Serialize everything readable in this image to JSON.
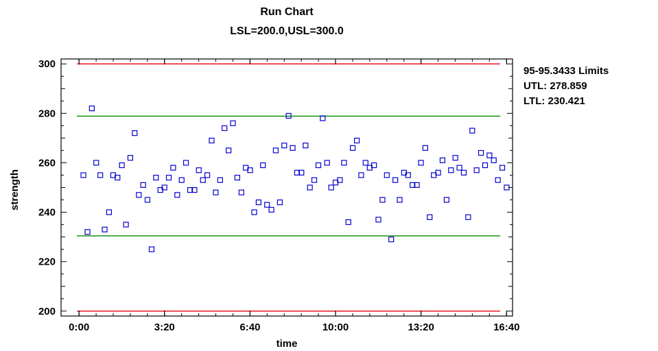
{
  "chart_data": {
    "type": "scatter",
    "title": "Run Chart",
    "subtitle": "LSL=200.0,USL=300.0",
    "xlabel": "time",
    "ylabel": "strength",
    "xlim": [
      -0.7,
      16.9
    ],
    "ylim": [
      198,
      302
    ],
    "x_ticks": [
      {
        "value": 0,
        "label": "0:00"
      },
      {
        "value": 3.333,
        "label": "3:20"
      },
      {
        "value": 6.667,
        "label": "6:40"
      },
      {
        "value": 10,
        "label": "10:00"
      },
      {
        "value": 13.333,
        "label": "13:20"
      },
      {
        "value": 16.667,
        "label": "16:40"
      }
    ],
    "y_ticks": [
      200,
      220,
      240,
      260,
      280,
      300
    ],
    "reference_lines": [
      {
        "name": "USL",
        "value": 300,
        "color": "#e8000b"
      },
      {
        "name": "UTL",
        "value": 278.859,
        "color": "#008a00"
      },
      {
        "name": "LTL",
        "value": 230.421,
        "color": "#008a00"
      },
      {
        "name": "LSL",
        "value": 200,
        "color": "#e8000b"
      }
    ],
    "legend": {
      "position": "right",
      "lines": [
        "95-95.3433 Limits",
        "UTL: 278.859",
        "LTL: 230.421"
      ]
    },
    "point_color": "#0000d0",
    "grid": false,
    "points": [
      [
        0.17,
        255
      ],
      [
        0.33,
        232
      ],
      [
        0.5,
        282
      ],
      [
        0.67,
        260
      ],
      [
        0.83,
        255
      ],
      [
        1.0,
        233
      ],
      [
        1.17,
        240
      ],
      [
        1.33,
        255
      ],
      [
        1.5,
        254
      ],
      [
        1.67,
        259
      ],
      [
        1.83,
        235
      ],
      [
        2.0,
        262
      ],
      [
        2.17,
        272
      ],
      [
        2.33,
        247
      ],
      [
        2.5,
        251
      ],
      [
        2.67,
        245
      ],
      [
        2.83,
        225
      ],
      [
        3.0,
        254
      ],
      [
        3.17,
        249
      ],
      [
        3.33,
        250
      ],
      [
        3.5,
        254
      ],
      [
        3.67,
        258
      ],
      [
        3.83,
        247
      ],
      [
        4.0,
        253
      ],
      [
        4.17,
        260
      ],
      [
        4.33,
        249
      ],
      [
        4.5,
        249
      ],
      [
        4.67,
        257
      ],
      [
        4.83,
        253
      ],
      [
        5.0,
        255
      ],
      [
        5.17,
        269
      ],
      [
        5.33,
        248
      ],
      [
        5.5,
        253
      ],
      [
        5.67,
        274
      ],
      [
        5.83,
        265
      ],
      [
        6.0,
        276
      ],
      [
        6.17,
        254
      ],
      [
        6.33,
        248
      ],
      [
        6.5,
        258
      ],
      [
        6.67,
        257
      ],
      [
        6.83,
        240
      ],
      [
        7.0,
        244
      ],
      [
        7.17,
        259
      ],
      [
        7.33,
        243
      ],
      [
        7.5,
        241
      ],
      [
        7.67,
        265
      ],
      [
        7.83,
        244
      ],
      [
        8.0,
        267
      ],
      [
        8.17,
        279
      ],
      [
        8.33,
        266
      ],
      [
        8.5,
        256
      ],
      [
        8.67,
        256
      ],
      [
        8.83,
        267
      ],
      [
        9.0,
        250
      ],
      [
        9.17,
        253
      ],
      [
        9.33,
        259
      ],
      [
        9.5,
        278
      ],
      [
        9.67,
        260
      ],
      [
        9.83,
        250
      ],
      [
        10.0,
        252
      ],
      [
        10.17,
        253
      ],
      [
        10.33,
        260
      ],
      [
        10.5,
        236
      ],
      [
        10.67,
        266
      ],
      [
        10.83,
        269
      ],
      [
        11.0,
        255
      ],
      [
        11.17,
        260
      ],
      [
        11.33,
        258
      ],
      [
        11.5,
        259
      ],
      [
        11.67,
        237
      ],
      [
        11.83,
        245
      ],
      [
        12.0,
        255
      ],
      [
        12.17,
        229
      ],
      [
        12.33,
        253
      ],
      [
        12.5,
        245
      ],
      [
        12.67,
        256
      ],
      [
        12.83,
        255
      ],
      [
        13.0,
        251
      ],
      [
        13.17,
        251
      ],
      [
        13.33,
        260
      ],
      [
        13.5,
        266
      ],
      [
        13.67,
        238
      ],
      [
        13.83,
        255
      ],
      [
        14.0,
        256
      ],
      [
        14.17,
        261
      ],
      [
        14.33,
        245
      ],
      [
        14.5,
        257
      ],
      [
        14.67,
        262
      ],
      [
        14.83,
        258
      ],
      [
        15.0,
        256
      ],
      [
        15.17,
        238
      ],
      [
        15.33,
        273
      ],
      [
        15.5,
        257
      ],
      [
        15.67,
        264
      ],
      [
        15.83,
        259
      ],
      [
        16.0,
        263
      ],
      [
        16.17,
        261
      ],
      [
        16.33,
        253
      ],
      [
        16.5,
        258
      ],
      [
        16.67,
        250
      ]
    ]
  }
}
